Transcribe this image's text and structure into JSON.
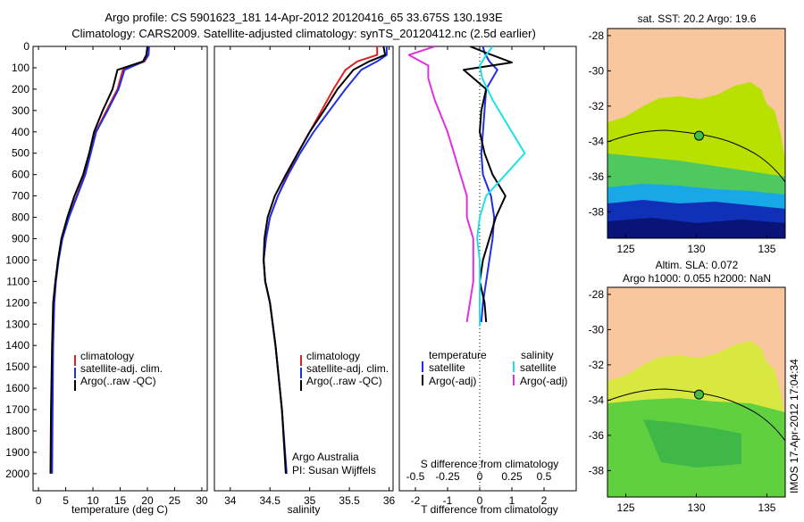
{
  "header": {
    "line1": "Argo profile: CS 5901623_181 14-Apr-2012 20120416_65 33.675S 130.193E",
    "line2": "Climatology: CARS2009. Satellite-adjusted climatology: synTS_20120412.nc (2.5d earlier)"
  },
  "colors": {
    "climatology": "#e02020",
    "satellite": "#2030e0",
    "argo": "#000000",
    "sal_sat": "#20e0e8",
    "sal_argo": "#e030e0",
    "land": "#f8c79e"
  },
  "chart_data": [
    {
      "type": "line",
      "xlabel": "temperature (deg C)",
      "xlim": [
        -1,
        31
      ],
      "xticks": [
        0,
        5,
        10,
        15,
        20,
        25,
        30
      ],
      "ylim": [
        0,
        2080
      ],
      "yticks": [
        0,
        100,
        200,
        300,
        400,
        500,
        600,
        700,
        800,
        900,
        1000,
        1100,
        1200,
        1300,
        1400,
        1500,
        1600,
        1700,
        1800,
        1900,
        2000
      ],
      "legend": [
        "climatology",
        "satellite-adj. clim.",
        "Argo(..raw -QC)"
      ],
      "series": [
        {
          "name": "climatology",
          "color": "red",
          "x": [
            20.3,
            20.2,
            19.5,
            15.5,
            14.5,
            12.5,
            10.5,
            9.5,
            8.5,
            7.0,
            5.5,
            4.3,
            3.6,
            3.1,
            2.8,
            2.6,
            2.5,
            2.4
          ],
          "y": [
            0,
            40,
            70,
            110,
            200,
            300,
            400,
            500,
            600,
            700,
            800,
            900,
            1000,
            1100,
            1200,
            1400,
            1700,
            2000
          ]
        },
        {
          "name": "satellite-adj. clim.",
          "color": "blue",
          "x": [
            20.3,
            20.2,
            19.3,
            15.8,
            14.7,
            12.7,
            10.6,
            9.6,
            8.6,
            7.1,
            5.6,
            4.4,
            3.7,
            3.2,
            2.9,
            2.7,
            2.6,
            2.5
          ],
          "y": [
            0,
            40,
            70,
            110,
            200,
            300,
            400,
            500,
            600,
            700,
            800,
            900,
            1000,
            1100,
            1200,
            1400,
            1700,
            2000
          ]
        },
        {
          "name": "Argo(..raw -QC)",
          "color": "black",
          "x": [
            20.0,
            19.8,
            19.2,
            14.5,
            13.6,
            11.8,
            10.2,
            9.3,
            8.2,
            6.6,
            5.3,
            4.2,
            3.6,
            3.1,
            2.7,
            2.5,
            2.3,
            2.2
          ],
          "y": [
            0,
            40,
            70,
            110,
            200,
            300,
            400,
            500,
            600,
            700,
            800,
            900,
            1000,
            1100,
            1200,
            1400,
            1700,
            2000
          ]
        }
      ]
    },
    {
      "type": "line",
      "xlabel": "salinity",
      "xlim": [
        33.8,
        36.05
      ],
      "xticks": [
        34,
        34.5,
        35,
        35.5,
        36
      ],
      "ylim": [
        0,
        2080
      ],
      "legend": [
        "climatology",
        "satellite-adj. clim.",
        "Argo(..raw -QC)"
      ],
      "annotation": [
        "Argo Australia",
        "PI: Susan Wijffels"
      ],
      "series": [
        {
          "name": "climatology",
          "color": "red",
          "x": [
            35.85,
            35.85,
            35.6,
            35.45,
            35.3,
            35.15,
            35.0,
            34.85,
            34.72,
            34.6,
            34.5,
            34.45,
            34.42,
            34.44,
            34.5,
            34.57,
            34.65,
            34.7
          ],
          "y": [
            0,
            40,
            70,
            110,
            200,
            300,
            400,
            500,
            600,
            700,
            800,
            900,
            1000,
            1100,
            1200,
            1400,
            1700,
            2000
          ]
        },
        {
          "name": "satellite-adj. clim.",
          "color": "blue",
          "x": [
            35.97,
            35.97,
            35.85,
            35.65,
            35.45,
            35.25,
            35.05,
            34.88,
            34.73,
            34.6,
            34.5,
            34.45,
            34.42,
            34.44,
            34.5,
            34.57,
            34.65,
            34.71
          ],
          "y": [
            0,
            40,
            70,
            110,
            200,
            300,
            400,
            500,
            600,
            700,
            800,
            900,
            1000,
            1100,
            1200,
            1400,
            1700,
            2000
          ]
        },
        {
          "name": "Argo(..raw -QC)",
          "color": "black",
          "x": [
            35.93,
            35.95,
            35.75,
            35.55,
            35.35,
            35.18,
            35.0,
            34.85,
            34.7,
            34.56,
            34.47,
            34.43,
            34.42,
            34.44,
            34.5,
            34.57,
            34.65,
            34.7
          ],
          "y": [
            0,
            40,
            70,
            110,
            200,
            300,
            400,
            500,
            600,
            700,
            800,
            900,
            1000,
            1100,
            1200,
            1400,
            1700,
            2000
          ]
        }
      ]
    },
    {
      "type": "line",
      "xlabel": "T difference from climatology",
      "xlabel_top": "S difference from climatology",
      "xlim": [
        -2.5,
        3
      ],
      "xticks": [
        -2,
        -1,
        0,
        1,
        2
      ],
      "xticks_top": [
        -0.5,
        -0.25,
        0,
        0.25,
        0.5
      ],
      "ylim": [
        0,
        2080
      ],
      "legend_temperature": [
        "temperature",
        "satellite",
        "Argo(-adj)"
      ],
      "legend_salinity": [
        "salinity",
        "satellite",
        "Argo(-adj)"
      ],
      "series": [
        {
          "name": "T satellite",
          "color": "blue",
          "x": [
            0.1,
            0.15,
            0.3,
            0.55,
            0.2,
            0.15,
            0.1,
            0.05,
            0.1,
            0.35,
            0.45,
            0.4,
            0.3,
            0.2,
            0.1,
            0.05
          ],
          "y": [
            0,
            30,
            70,
            110,
            200,
            300,
            400,
            500,
            600,
            700,
            800,
            900,
            1000,
            1100,
            1200,
            1290
          ]
        },
        {
          "name": "T Argo(-adj)",
          "color": "black",
          "x": [
            -0.3,
            0.2,
            1.0,
            -0.5,
            0.2,
            0.05,
            0.0,
            0.15,
            0.4,
            0.8,
            0.5,
            0.3,
            0.1,
            0.0,
            0.15,
            0.2
          ],
          "y": [
            0,
            30,
            75,
            110,
            200,
            300,
            400,
            500,
            600,
            700,
            800,
            900,
            1000,
            1100,
            1200,
            1290
          ]
        },
        {
          "name": "S satellite",
          "color": "cyan",
          "x": [
            0.1,
            0.05,
            0.0,
            0.02,
            0.1,
            0.25,
            0.35,
            0.2,
            0.05,
            0.0,
            -0.02,
            0.0,
            0.0,
            0.0,
            0.0
          ],
          "y": [
            0,
            40,
            90,
            150,
            250,
            400,
            500,
            600,
            700,
            800,
            900,
            1000,
            1100,
            1200,
            1310
          ]
        },
        {
          "name": "S Argo(-adj)",
          "color": "magenta",
          "x": [
            -0.35,
            -0.55,
            -0.4,
            -0.4,
            -0.35,
            -0.25,
            -0.2,
            -0.15,
            -0.1,
            -0.1,
            -0.05,
            -0.05,
            -0.05,
            -0.1
          ],
          "y": [
            0,
            40,
            90,
            150,
            250,
            400,
            500,
            600,
            700,
            800,
            900,
            1000,
            1100,
            1290
          ]
        }
      ]
    }
  ],
  "maps": [
    {
      "title": "sat. SST: 20.2  Argo: 19.6",
      "xticks": [
        125,
        130,
        135
      ],
      "yticks": [
        -28,
        -30,
        -32,
        -34,
        -36,
        -38
      ],
      "xlim": [
        123.7,
        136.3
      ],
      "ylim": [
        -39.5,
        -27.6
      ],
      "float_lon": 130.19,
      "float_lat": -33.68
    },
    {
      "title_line1": "Altim. SLA: 0.072",
      "title_line2": "Argo h1000: 0.055 h2000: NaN",
      "xticks": [
        125,
        130,
        135
      ],
      "yticks": [
        -28,
        -30,
        -32,
        -34,
        -36,
        -38
      ],
      "xlim": [
        123.7,
        136.3
      ],
      "ylim": [
        -39.5,
        -27.6
      ],
      "float_lon": 130.19,
      "float_lat": -33.68
    }
  ],
  "side_stamp": "IMOS 17-Apr-2012 17:04:34"
}
